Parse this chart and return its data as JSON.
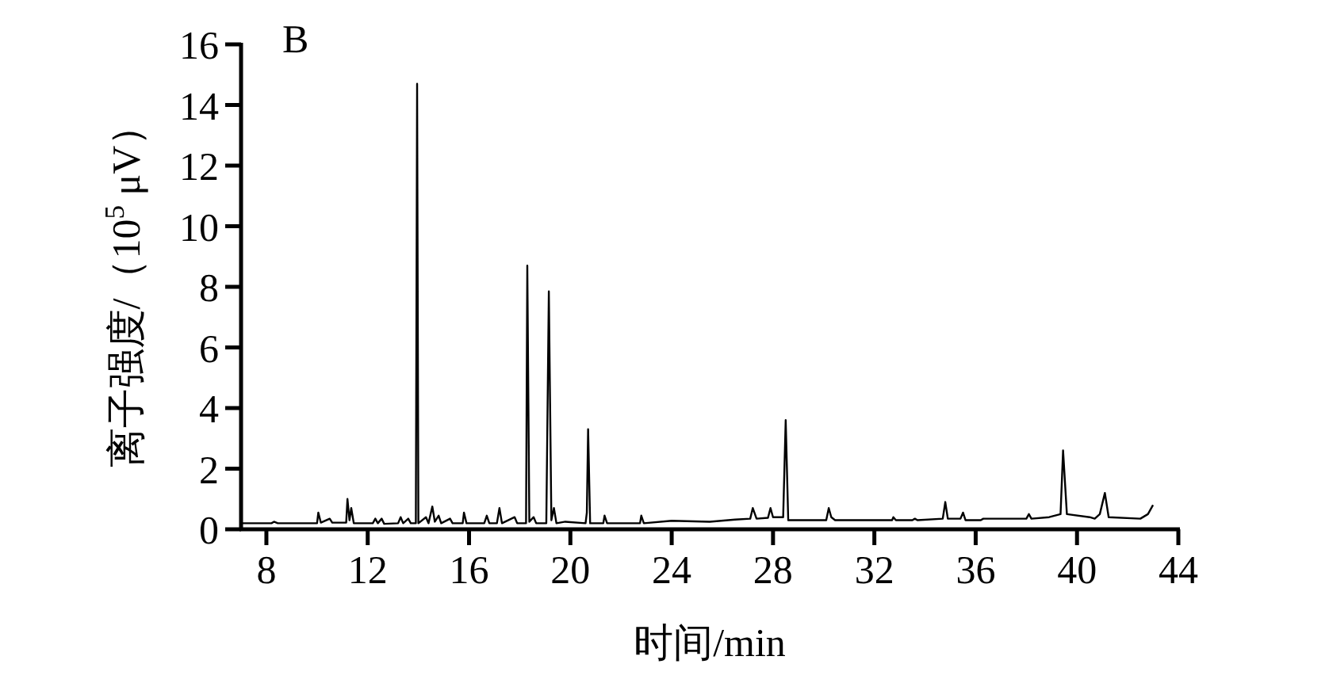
{
  "chart_data": {
    "type": "line",
    "xlabel": "时间/min",
    "ylabel": "离子强度/（10$^{5}$ μV）",
    "annotations": [
      "B"
    ],
    "xlim": [
      7,
      44
    ],
    "ylim": [
      0,
      16
    ],
    "xticks": [
      8,
      12,
      16,
      20,
      24,
      28,
      32,
      36,
      40,
      44
    ],
    "yticks": [
      0,
      2,
      4,
      6,
      8,
      10,
      12,
      14,
      16
    ],
    "series": [
      {
        "color": "#000000",
        "x": [
          7.05,
          8.2,
          8.3,
          8.45,
          10.0,
          10.05,
          10.15,
          10.5,
          10.6,
          11.15,
          11.2,
          11.28,
          11.35,
          11.45,
          12.2,
          12.3,
          12.4,
          12.55,
          12.65,
          13.2,
          13.3,
          13.4,
          13.6,
          13.7,
          13.9,
          13.95,
          14.0,
          14.3,
          14.4,
          14.55,
          14.65,
          14.8,
          14.9,
          15.25,
          15.35,
          15.75,
          15.8,
          15.9,
          16.6,
          16.7,
          16.8,
          17.1,
          17.2,
          17.3,
          17.8,
          17.9,
          18.25,
          18.3,
          18.38,
          18.55,
          18.65,
          19.05,
          19.15,
          19.25,
          19.35,
          19.45,
          19.8,
          20.6,
          20.65,
          20.7,
          20.78,
          21.3,
          21.35,
          21.45,
          22.75,
          22.8,
          22.9,
          24.0,
          25.5,
          26.5,
          27.1,
          27.2,
          27.35,
          27.8,
          27.9,
          28.0,
          28.4,
          28.5,
          28.6,
          30.1,
          30.2,
          30.3,
          30.45,
          32.7,
          32.75,
          32.85,
          33.5,
          33.6,
          33.7,
          34.7,
          34.8,
          34.9,
          35.4,
          35.5,
          35.6,
          36.2,
          36.3,
          38.0,
          38.1,
          38.2,
          38.9,
          39.35,
          39.45,
          39.6,
          40.5,
          40.7,
          40.9,
          41.1,
          41.25,
          42.5,
          42.8,
          43.0
        ],
        "values": [
          0.2,
          0.2,
          0.25,
          0.2,
          0.2,
          0.55,
          0.22,
          0.35,
          0.22,
          0.22,
          1.0,
          0.3,
          0.7,
          0.2,
          0.2,
          0.35,
          0.2,
          0.35,
          0.18,
          0.2,
          0.4,
          0.2,
          0.35,
          0.2,
          0.2,
          14.7,
          0.2,
          0.4,
          0.2,
          0.75,
          0.25,
          0.45,
          0.2,
          0.35,
          0.2,
          0.2,
          0.55,
          0.2,
          0.2,
          0.45,
          0.2,
          0.2,
          0.7,
          0.2,
          0.4,
          0.2,
          0.2,
          8.7,
          0.25,
          0.4,
          0.2,
          0.2,
          7.85,
          0.3,
          0.7,
          0.2,
          0.25,
          0.2,
          0.55,
          3.3,
          0.2,
          0.2,
          0.45,
          0.2,
          0.2,
          0.45,
          0.2,
          0.28,
          0.25,
          0.32,
          0.35,
          0.7,
          0.35,
          0.38,
          0.7,
          0.4,
          0.4,
          3.6,
          0.3,
          0.3,
          0.7,
          0.4,
          0.3,
          0.3,
          0.4,
          0.3,
          0.3,
          0.35,
          0.3,
          0.35,
          0.9,
          0.35,
          0.35,
          0.55,
          0.3,
          0.3,
          0.35,
          0.35,
          0.5,
          0.35,
          0.4,
          0.5,
          2.6,
          0.5,
          0.4,
          0.35,
          0.5,
          1.2,
          0.4,
          0.35,
          0.5,
          0.8
        ]
      }
    ]
  }
}
